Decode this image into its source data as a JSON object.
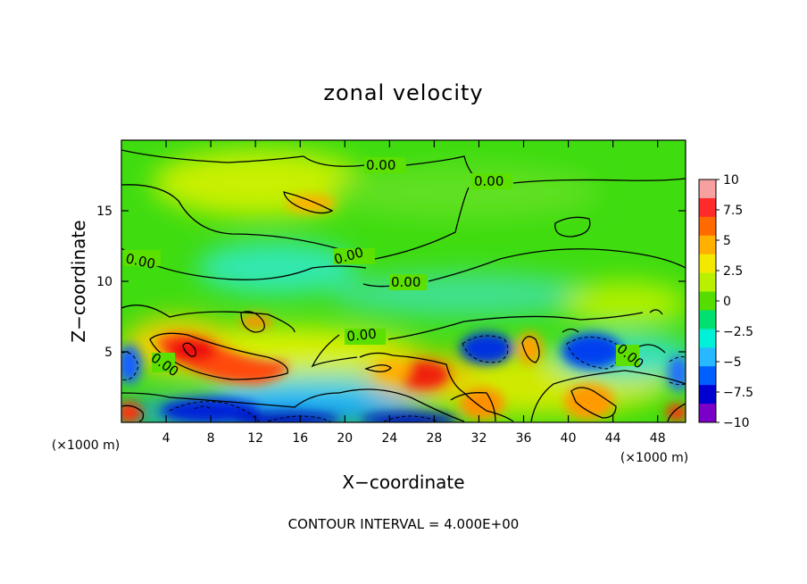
{
  "chart_data": {
    "type": "heatmap",
    "title": "zonal velocity",
    "xlabel": "X−coordinate",
    "ylabel": "Z−coordinate",
    "x_unit": "(×1000 m)",
    "z_unit": "(×1000 m)",
    "xlim": [
      0,
      50.5
    ],
    "ylim": [
      0,
      20
    ],
    "x_ticks": [
      4,
      8,
      12,
      16,
      20,
      24,
      28,
      32,
      36,
      40,
      44,
      48
    ],
    "y_ticks": [
      5,
      10,
      15
    ],
    "colorbar": {
      "range": [
        -10,
        10
      ],
      "ticks": [
        "10",
        "7.5",
        "5",
        "2.5",
        "0",
        "−2.5",
        "−5",
        "−7.5",
        "−10"
      ],
      "colors": [
        "#f7a0a0",
        "#ff2a2a",
        "#ff6a00",
        "#ffb000",
        "#f2e800",
        "#b8f000",
        "#55dd00",
        "#00e070",
        "#00f0d8",
        "#28b8ff",
        "#0060ff",
        "#0000d0",
        "#7a00c8"
      ]
    },
    "contour_interval_text": "CONTOUR INTERVAL = 4.000E+00",
    "contour_labels": [
      "0.00",
      "0.00",
      "0.00",
      "0.00",
      "0.00",
      "0.00",
      "0.00",
      "0.00"
    ],
    "features": [
      {
        "x": 19,
        "z": 17.5,
        "value": 3,
        "kind": "positive"
      },
      {
        "x": 7,
        "z": 5.2,
        "value": 8,
        "kind": "positive"
      },
      {
        "x": 13,
        "z": 3.8,
        "value": 7,
        "kind": "positive"
      },
      {
        "x": 26.5,
        "z": 3.2,
        "value": 8,
        "kind": "positive"
      },
      {
        "x": 22.5,
        "z": 3.8,
        "value": 4,
        "kind": "positive"
      },
      {
        "x": 32,
        "z": 1.2,
        "value": 5,
        "kind": "positive"
      },
      {
        "x": 34.5,
        "z": 5.0,
        "value": 4,
        "kind": "positive"
      },
      {
        "x": 41,
        "z": 1.4,
        "value": 5,
        "kind": "positive"
      },
      {
        "x": 0.5,
        "z": 0.7,
        "value": 7,
        "kind": "positive"
      },
      {
        "x": 50,
        "z": 0.8,
        "value": 7,
        "kind": "positive"
      },
      {
        "x": 12,
        "z": 7.2,
        "value": 5,
        "kind": "positive"
      },
      {
        "x": 1,
        "z": 4.2,
        "value": -6,
        "kind": "negative"
      },
      {
        "x": 8,
        "z": 0.8,
        "value": -8,
        "kind": "negative"
      },
      {
        "x": 16,
        "z": 0.4,
        "value": -8,
        "kind": "negative"
      },
      {
        "x": 26,
        "z": 0.4,
        "value": -7,
        "kind": "negative"
      },
      {
        "x": 32,
        "z": 5.3,
        "value": -8,
        "kind": "negative"
      },
      {
        "x": 40.5,
        "z": 5.1,
        "value": -7,
        "kind": "negative"
      },
      {
        "x": 49.5,
        "z": 3.8,
        "value": -5,
        "kind": "negative"
      }
    ]
  }
}
